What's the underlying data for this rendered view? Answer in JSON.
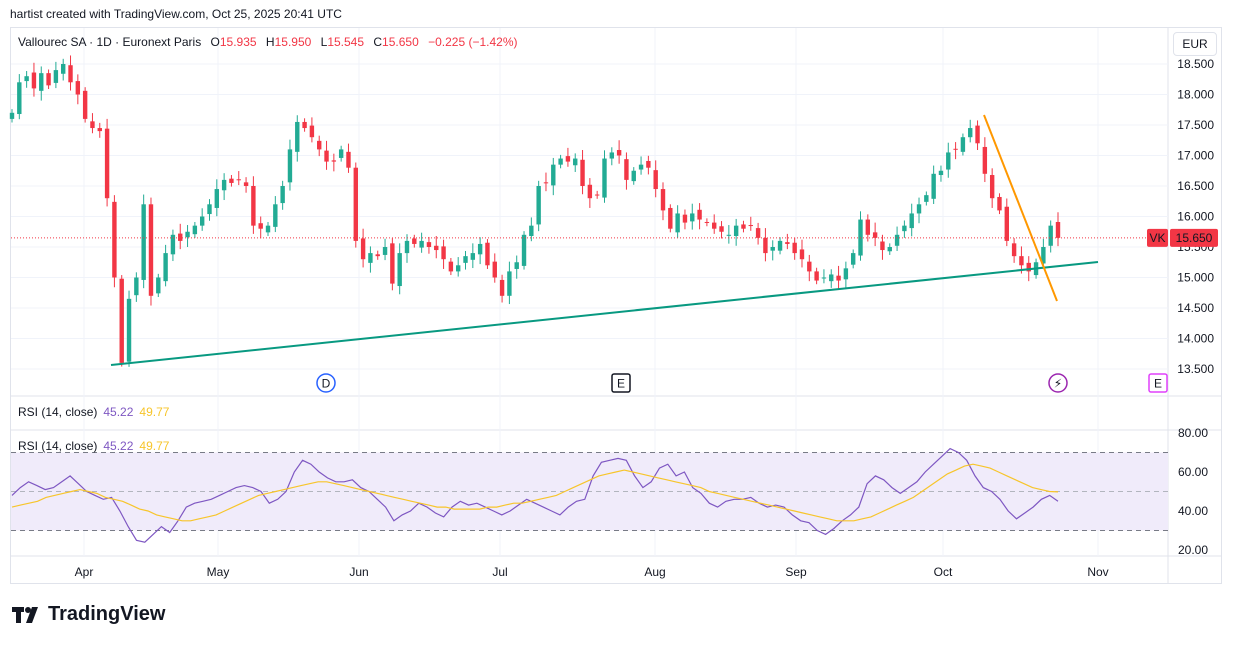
{
  "header": {
    "credit": "hartist created with TradingView.com, Oct 25, 2025 20:41 UTC"
  },
  "legend": {
    "symbol": "Vallourec SA · 1D · Euronext Paris",
    "o_label": "O",
    "o_value": "15.935",
    "h_label": "H",
    "h_value": "15.950",
    "l_label": "L",
    "l_value": "15.545",
    "c_label": "C",
    "c_value": "15.650",
    "change": "−0.225 (−1.42%)"
  },
  "currency": "EUR",
  "rsi": {
    "label": "RSI (14, close)",
    "rsi_value": "45.22",
    "ma_value": "49.77"
  },
  "brand": {
    "name": "TradingView"
  },
  "markers": {
    "dividend": "D",
    "earnings1": "E",
    "flash": "⚡",
    "earnings2": "E"
  },
  "price_tag": {
    "symbol": "VK",
    "value": "15.650"
  },
  "colors": {
    "up": "#22ab94",
    "down": "#f23645",
    "trend_green": "#089981",
    "trend_orange": "#ff9800",
    "rsi_line": "#7e57c2",
    "rsi_ma": "#f7c52b",
    "band_fill": "#f0ebfa",
    "marker_blue": "#2962ff",
    "marker_purple": "#9c27b0",
    "marker_magenta": "#e040fb"
  },
  "chart_data": [
    {
      "type": "candlestick",
      "title": "Vallourec SA · 1D · Euronext Paris",
      "y_axis_ticks": [
        "13.500",
        "14.000",
        "14.500",
        "15.000",
        "15.500",
        "16.000",
        "16.500",
        "17.000",
        "17.500",
        "18.000",
        "18.500"
      ],
      "x_axis_ticks": [
        "Apr",
        "May",
        "Jun",
        "Jul",
        "Aug",
        "Sep",
        "Oct",
        "Nov"
      ],
      "ylim": [
        13.3,
        18.75
      ],
      "last_price": 15.65,
      "close_series": [
        17.7,
        18.2,
        18.3,
        18.1,
        18.35,
        18.15,
        18.4,
        18.5,
        18.2,
        18.0,
        17.6,
        17.45,
        17.4,
        16.3,
        15.0,
        13.6,
        14.65,
        15.0,
        16.2,
        14.7,
        15.0,
        15.4,
        15.7,
        15.6,
        15.75,
        15.85,
        16.0,
        16.2,
        16.45,
        16.6,
        16.55,
        16.6,
        16.5,
        15.85,
        15.8,
        15.85,
        16.2,
        16.5,
        17.1,
        17.55,
        17.45,
        17.3,
        17.1,
        16.9,
        16.9,
        17.1,
        16.8,
        15.6,
        15.3,
        15.4,
        15.35,
        15.5,
        14.9,
        15.4,
        15.6,
        15.55,
        15.6,
        15.5,
        15.45,
        15.3,
        15.1,
        15.2,
        15.35,
        15.4,
        15.55,
        15.2,
        15.0,
        14.7,
        15.1,
        15.25,
        15.7,
        15.85,
        16.5,
        16.55,
        16.85,
        16.95,
        16.9,
        16.95,
        16.5,
        16.3,
        16.35,
        16.95,
        17.05,
        17.0,
        16.6,
        16.75,
        16.85,
        16.8,
        16.45,
        16.1,
        15.8,
        16.05,
        15.9,
        16.05,
        15.95,
        15.9,
        15.8,
        15.75,
        15.7,
        15.85,
        15.8,
        15.85,
        15.65,
        15.4,
        15.5,
        15.6,
        15.55,
        15.4,
        15.3,
        15.1,
        14.95,
        15.0,
        15.05,
        14.95,
        15.15,
        15.4,
        15.95,
        15.7,
        15.65,
        15.45,
        15.5,
        15.7,
        15.85,
        16.05,
        16.2,
        16.35,
        16.7,
        16.75,
        17.05,
        17.1,
        17.3,
        17.45,
        17.2,
        16.7,
        16.3,
        16.1,
        15.6,
        15.35,
        15.2,
        15.1,
        15.25,
        15.5,
        15.85,
        15.65
      ],
      "trendlines": [
        {
          "from": [
            "Apr 7",
            13.55
          ],
          "to": [
            "Oct 24",
            15.25
          ]
        },
        {
          "from": [
            "Oct 7",
            17.7
          ],
          "to": [
            "Oct 24",
            14.6
          ]
        }
      ],
      "event_markers": [
        "D",
        "E",
        "⚡",
        "E"
      ]
    },
    {
      "type": "line",
      "title": "RSI (14, close)",
      "y_axis_ticks": [
        "20.00",
        "40.00",
        "60.00",
        "80.00"
      ],
      "ylim": [
        15,
        85
      ],
      "band": [
        30,
        70
      ],
      "midline": 50,
      "series": [
        {
          "name": "RSI",
          "values": [
            48,
            52,
            55,
            53,
            51,
            52,
            55,
            58,
            54,
            50,
            48,
            46,
            47,
            40,
            32,
            25,
            24,
            28,
            32,
            29,
            35,
            42,
            44,
            45,
            46,
            48,
            50,
            52,
            53,
            52,
            50,
            44,
            46,
            50,
            60,
            66,
            64,
            60,
            57,
            55,
            55,
            56,
            52,
            50,
            46,
            42,
            35,
            38,
            40,
            44,
            42,
            39,
            37,
            42,
            45,
            43,
            44,
            42,
            40,
            38,
            40,
            43,
            46,
            44,
            42,
            40,
            38,
            42,
            45,
            46,
            58,
            65,
            66,
            67,
            66,
            58,
            52,
            55,
            62,
            64,
            58,
            60,
            52,
            49,
            44,
            42,
            45,
            46,
            46,
            47,
            44,
            42,
            43,
            42,
            38,
            35,
            34,
            30,
            28,
            31,
            35,
            38,
            42,
            54,
            58,
            56,
            52,
            49,
            52,
            55,
            60,
            64,
            68,
            72,
            70,
            66,
            58,
            52,
            50,
            46,
            40,
            36,
            39,
            42,
            46,
            48,
            45
          ],
          "color": "#7e57c2"
        },
        {
          "name": "MA",
          "values": [
            42,
            43,
            44,
            45,
            47,
            48,
            49,
            50,
            51,
            50,
            49,
            47,
            46,
            45,
            43,
            41,
            40,
            38,
            37,
            36,
            35,
            35,
            36,
            37,
            38,
            40,
            42,
            44,
            46,
            48,
            49,
            50,
            51,
            52,
            53,
            54,
            55,
            55,
            54,
            53,
            52,
            51,
            50,
            49,
            48,
            47,
            46,
            45,
            44,
            43,
            42,
            42,
            41,
            41,
            41,
            41,
            42,
            42,
            43,
            44,
            44,
            45,
            46,
            47,
            48,
            50,
            52,
            54,
            56,
            58,
            59,
            60,
            61,
            60,
            59,
            58,
            57,
            56,
            55,
            54,
            53,
            52,
            50,
            49,
            48,
            47,
            46,
            45,
            44,
            43,
            42,
            41,
            40,
            39,
            38,
            37,
            36,
            35,
            35,
            35,
            36,
            37,
            39,
            41,
            43,
            45,
            47,
            50,
            53,
            56,
            59,
            61,
            63,
            64,
            63,
            62,
            60,
            58,
            56,
            54,
            52,
            51,
            50,
            49.77
          ],
          "color": "#f7c52b"
        }
      ]
    }
  ]
}
